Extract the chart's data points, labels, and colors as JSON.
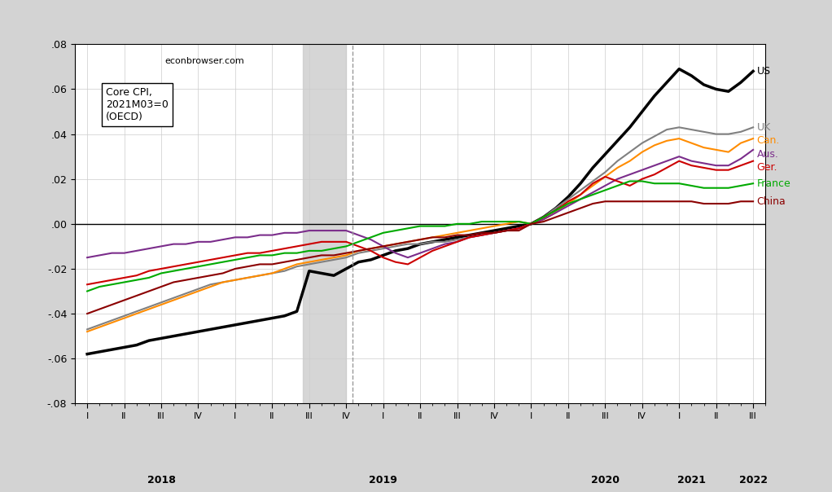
{
  "title": "econbrowser.com",
  "box_label": "Core CPI,\n2021M03=0\n(OECD)",
  "background_color": "#d3d3d3",
  "plot_bg_color": "#ffffff",
  "ylim": [
    -0.08,
    0.08
  ],
  "yticks": [
    -0.08,
    -0.06,
    -0.04,
    -0.02,
    0.0,
    0.02,
    0.04,
    0.06,
    0.08
  ],
  "recession_shade": [
    17.5,
    21.0
  ],
  "shade_color": "#cccccc",
  "vline_x": 21.5,
  "series": {
    "US": {
      "color": "#000000",
      "linewidth": 2.5,
      "label_color": "#000000",
      "values": [
        -0.058,
        -0.057,
        -0.056,
        -0.055,
        -0.054,
        -0.052,
        -0.051,
        -0.05,
        -0.049,
        -0.048,
        -0.047,
        -0.046,
        -0.045,
        -0.044,
        -0.043,
        -0.042,
        -0.041,
        -0.039,
        -0.021,
        -0.022,
        -0.023,
        -0.02,
        -0.017,
        -0.016,
        -0.014,
        -0.012,
        -0.011,
        -0.009,
        -0.008,
        -0.007,
        -0.006,
        -0.005,
        -0.004,
        -0.003,
        -0.002,
        -0.001,
        0.0,
        0.003,
        0.007,
        0.012,
        0.018,
        0.025,
        0.031,
        0.037,
        0.043,
        0.05,
        0.057,
        0.063,
        0.069,
        0.066,
        0.062,
        0.06,
        0.059,
        0.063,
        0.068
      ]
    },
    "UK": {
      "color": "#808080",
      "linewidth": 1.5,
      "label_color": "#808080",
      "values": [
        -0.047,
        -0.045,
        -0.043,
        -0.041,
        -0.039,
        -0.037,
        -0.035,
        -0.033,
        -0.031,
        -0.029,
        -0.027,
        -0.026,
        -0.025,
        -0.024,
        -0.023,
        -0.022,
        -0.021,
        -0.019,
        -0.018,
        -0.017,
        -0.016,
        -0.015,
        -0.013,
        -0.012,
        -0.011,
        -0.01,
        -0.009,
        -0.009,
        -0.008,
        -0.008,
        -0.007,
        -0.006,
        -0.005,
        -0.004,
        -0.003,
        -0.002,
        0.0,
        0.003,
        0.007,
        0.011,
        0.015,
        0.019,
        0.023,
        0.028,
        0.032,
        0.036,
        0.039,
        0.042,
        0.043,
        0.042,
        0.041,
        0.04,
        0.04,
        0.041,
        0.043
      ]
    },
    "Can.": {
      "color": "#ff8c00",
      "linewidth": 1.5,
      "label_color": "#ff8c00",
      "values": [
        -0.048,
        -0.046,
        -0.044,
        -0.042,
        -0.04,
        -0.038,
        -0.036,
        -0.034,
        -0.032,
        -0.03,
        -0.028,
        -0.026,
        -0.025,
        -0.024,
        -0.023,
        -0.022,
        -0.02,
        -0.018,
        -0.017,
        -0.016,
        -0.015,
        -0.014,
        -0.012,
        -0.011,
        -0.01,
        -0.009,
        -0.008,
        -0.007,
        -0.006,
        -0.005,
        -0.004,
        -0.003,
        -0.002,
        -0.001,
        0.0,
        0.001,
        0.0,
        0.002,
        0.005,
        0.009,
        0.013,
        0.017,
        0.021,
        0.025,
        0.028,
        0.032,
        0.035,
        0.037,
        0.038,
        0.036,
        0.034,
        0.033,
        0.032,
        0.036,
        0.038
      ]
    },
    "Aus.": {
      "color": "#7b2d8b",
      "linewidth": 1.5,
      "label_color": "#7b2d8b",
      "values": [
        -0.015,
        -0.014,
        -0.013,
        -0.013,
        -0.012,
        -0.011,
        -0.01,
        -0.009,
        -0.009,
        -0.008,
        -0.008,
        -0.007,
        -0.006,
        -0.006,
        -0.005,
        -0.005,
        -0.004,
        -0.004,
        -0.003,
        -0.003,
        -0.003,
        -0.003,
        -0.005,
        -0.007,
        -0.01,
        -0.013,
        -0.015,
        -0.013,
        -0.011,
        -0.009,
        -0.008,
        -0.006,
        -0.005,
        -0.004,
        -0.003,
        -0.002,
        0.0,
        0.002,
        0.005,
        0.008,
        0.011,
        0.014,
        0.017,
        0.02,
        0.022,
        0.024,
        0.026,
        0.028,
        0.03,
        0.028,
        0.027,
        0.026,
        0.026,
        0.029,
        0.033
      ]
    },
    "Ger.": {
      "color": "#cc0000",
      "linewidth": 1.5,
      "label_color": "#cc0000",
      "values": [
        -0.027,
        -0.026,
        -0.025,
        -0.024,
        -0.023,
        -0.021,
        -0.02,
        -0.019,
        -0.018,
        -0.017,
        -0.016,
        -0.015,
        -0.014,
        -0.013,
        -0.013,
        -0.012,
        -0.011,
        -0.01,
        -0.009,
        -0.008,
        -0.008,
        -0.008,
        -0.01,
        -0.012,
        -0.015,
        -0.017,
        -0.018,
        -0.015,
        -0.012,
        -0.01,
        -0.008,
        -0.006,
        -0.005,
        -0.004,
        -0.003,
        -0.002,
        0.0,
        0.003,
        0.006,
        0.01,
        0.013,
        0.018,
        0.021,
        0.019,
        0.017,
        0.02,
        0.022,
        0.025,
        0.028,
        0.026,
        0.025,
        0.024,
        0.024,
        0.026,
        0.028
      ]
    },
    "France": {
      "color": "#00aa00",
      "linewidth": 1.5,
      "label_color": "#00aa00",
      "values": [
        -0.03,
        -0.028,
        -0.027,
        -0.026,
        -0.025,
        -0.024,
        -0.022,
        -0.021,
        -0.02,
        -0.019,
        -0.018,
        -0.017,
        -0.016,
        -0.015,
        -0.014,
        -0.014,
        -0.013,
        -0.013,
        -0.012,
        -0.012,
        -0.011,
        -0.01,
        -0.008,
        -0.006,
        -0.004,
        -0.003,
        -0.002,
        -0.001,
        -0.001,
        -0.001,
        0.0,
        0.0,
        0.001,
        0.001,
        0.001,
        0.001,
        0.0,
        0.003,
        0.006,
        0.009,
        0.011,
        0.013,
        0.015,
        0.017,
        0.019,
        0.019,
        0.018,
        0.018,
        0.018,
        0.017,
        0.016,
        0.016,
        0.016,
        0.017,
        0.018
      ]
    },
    "China": {
      "color": "#8b0000",
      "linewidth": 1.5,
      "label_color": "#8b0000",
      "values": [
        -0.04,
        -0.038,
        -0.036,
        -0.034,
        -0.032,
        -0.03,
        -0.028,
        -0.026,
        -0.025,
        -0.024,
        -0.023,
        -0.022,
        -0.02,
        -0.019,
        -0.018,
        -0.018,
        -0.017,
        -0.016,
        -0.015,
        -0.014,
        -0.014,
        -0.013,
        -0.012,
        -0.011,
        -0.01,
        -0.009,
        -0.008,
        -0.007,
        -0.006,
        -0.006,
        -0.005,
        -0.005,
        -0.004,
        -0.004,
        -0.003,
        -0.003,
        0.0,
        0.001,
        0.003,
        0.005,
        0.007,
        0.009,
        0.01,
        0.01,
        0.01,
        0.01,
        0.01,
        0.01,
        0.01,
        0.01,
        0.009,
        0.009,
        0.009,
        0.01,
        0.01
      ]
    }
  },
  "label_positions": {
    "US": [
      54.3,
      0.068
    ],
    "UK": [
      54.3,
      0.043
    ],
    "Can.": [
      54.3,
      0.037
    ],
    "Aus.": [
      54.3,
      0.031
    ],
    "Ger.": [
      54.3,
      0.025
    ],
    "France": [
      54.3,
      0.018
    ],
    "China": [
      54.3,
      0.01
    ]
  },
  "year_labels": [
    [
      6,
      "2018"
    ],
    [
      24,
      "2019"
    ],
    [
      42,
      "2020"
    ],
    [
      49,
      "2021"
    ],
    [
      54,
      "2022"
    ]
  ]
}
